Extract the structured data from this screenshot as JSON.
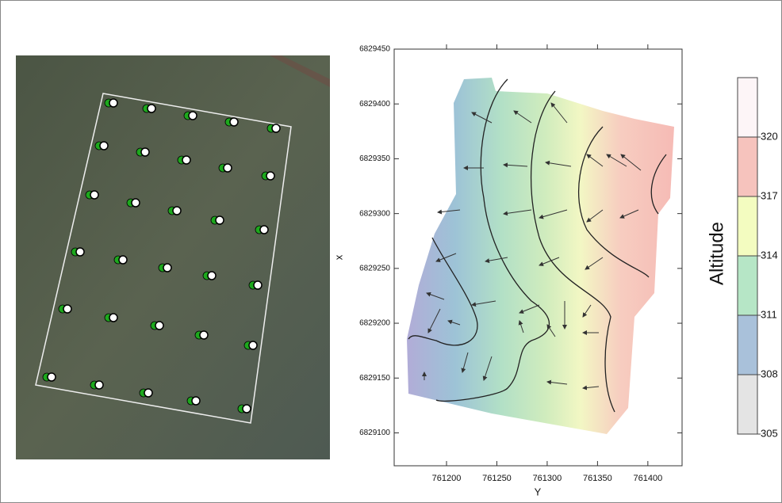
{
  "chart_data": {
    "type": "contour",
    "xlabel": "Y",
    "ylabel": "x",
    "xlim": [
      761148,
      761434
    ],
    "xticks": [
      761200,
      761250,
      761300,
      761350,
      761400
    ],
    "ylim": [
      6829070,
      6829450
    ],
    "yticks": [
      6829100,
      6829150,
      6829200,
      6829250,
      6829300,
      6829350,
      6829400,
      6829450
    ],
    "colorbar": {
      "label": "Altitude",
      "lim": [
        305,
        323
      ],
      "ticks": [
        305,
        308,
        311,
        314,
        317,
        320
      ],
      "colors": [
        "#e4e4e4",
        "#a9c1da",
        "#b6e6c6",
        "#f3fcc0",
        "#f6c3bd",
        "#fdf5f7"
      ]
    }
  }
}
